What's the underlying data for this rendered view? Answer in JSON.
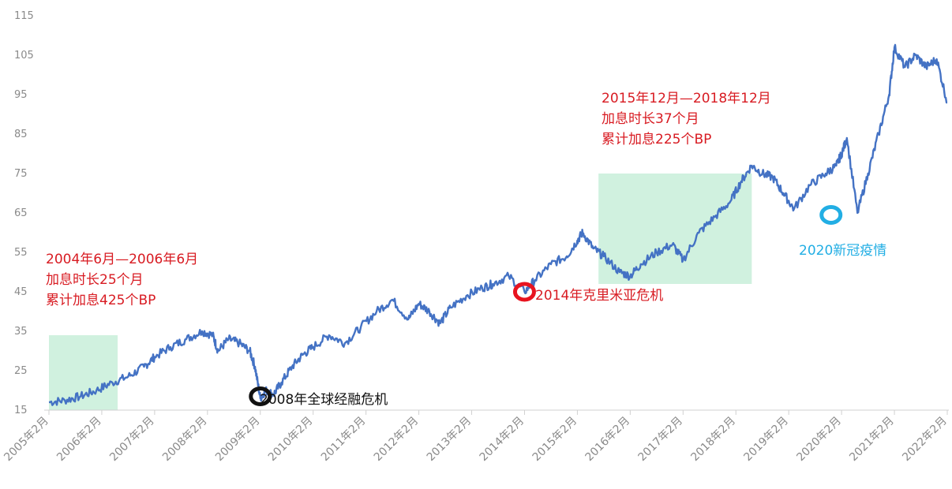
{
  "chart_data": {
    "type": "line",
    "title": "",
    "xlabel": "",
    "ylabel": "",
    "ylim": [
      15,
      115
    ],
    "y_ticks": [
      15,
      25,
      35,
      45,
      55,
      65,
      75,
      85,
      95,
      105,
      115
    ],
    "x_ticks": [
      "2005年2月",
      "2006年2月",
      "2007年2月",
      "2008年2月",
      "2009年2月",
      "2010年2月",
      "2011年2月",
      "2012年2月",
      "2013年2月",
      "2014年2月",
      "2015年2月",
      "2016年2月",
      "2017年2月",
      "2018年2月",
      "2019年2月",
      "2020年2月",
      "2021年2月",
      "2022年2月"
    ],
    "grid": false,
    "line_color": "#4472c4",
    "series": [
      {
        "x": [
          2005.0,
          2005.3,
          2005.6,
          2005.9,
          2006.2,
          2006.5,
          2006.8,
          2007.0,
          2007.3,
          2007.6,
          2007.9,
          2008.1,
          2008.2,
          2008.4,
          2008.6,
          2008.8,
          2008.9,
          2009.0,
          2009.1,
          2009.25,
          2009.4,
          2009.6,
          2009.8,
          2010.0,
          2010.3,
          2010.6,
          2010.9,
          2011.2,
          2011.5,
          2011.8,
          2012.0,
          2012.2,
          2012.4,
          2012.6,
          2012.9,
          2013.2,
          2013.4,
          2013.7,
          2014.0,
          2014.2,
          2014.5,
          2014.8,
          2015.0,
          2015.1,
          2015.3,
          2015.5,
          2015.8,
          2016.0,
          2016.2,
          2016.5,
          2016.8,
          2017.0,
          2017.3,
          2017.6,
          2017.9,
          2018.1,
          2018.3,
          2018.5,
          2018.7,
          2018.9,
          2019.1,
          2019.4,
          2019.7,
          2019.9,
          2020.0,
          2020.1,
          2020.3,
          2020.5,
          2020.7,
          2020.9,
          2021.0,
          2021.2,
          2021.4,
          2021.6,
          2021.8,
          2022.0
        ],
        "y": [
          17,
          17.5,
          18.5,
          20,
          22,
          23.5,
          26,
          28.5,
          31,
          33,
          35,
          34,
          30,
          33,
          32,
          30,
          26,
          18,
          20,
          19,
          22,
          26,
          29,
          31,
          34,
          32,
          36,
          40,
          43,
          38,
          42,
          40,
          37,
          41,
          44,
          46,
          47,
          49,
          45,
          48,
          52,
          54,
          58,
          60,
          56,
          54,
          50,
          49,
          52,
          55,
          57,
          53,
          60,
          64,
          68,
          73,
          77,
          75,
          74,
          70,
          66,
          72,
          75,
          77,
          80,
          84,
          65,
          75,
          85,
          95,
          107,
          102,
          105,
          102,
          104,
          93
        ]
      }
    ],
    "highlight_periods": [
      {
        "from": 2005.0,
        "to": 2006.3,
        "y_top": 34,
        "color": "#c8efd9"
      },
      {
        "from": 2015.4,
        "to": 2018.3,
        "y_top": 75,
        "color": "#c8efd9"
      }
    ],
    "event_markers": [
      {
        "x": 2009.0,
        "y": 18.5,
        "color": "#111111"
      },
      {
        "x": 2014.0,
        "y": 45.0,
        "color": "#e8131f"
      },
      {
        "x": 2019.8,
        "y": 64.5,
        "color": "#22aee4"
      }
    ],
    "annotations": [
      {
        "lines": [
          "2004年6月—2006年6月",
          "加息时长25个月",
          "累计加息425个BP"
        ],
        "color": "#d81b22"
      },
      {
        "lines": [
          "2008年全球经融危机"
        ],
        "color": "#111111"
      },
      {
        "lines": [
          "2014年克里米亚危机"
        ],
        "color": "#d81b22"
      },
      {
        "lines": [
          "2015年12月—2018年12月",
          "加息时长37个月",
          "累计加息225个BP"
        ],
        "color": "#d81b22"
      },
      {
        "lines": [
          "2020新冠疫情"
        ],
        "color": "#22aee4"
      }
    ]
  }
}
